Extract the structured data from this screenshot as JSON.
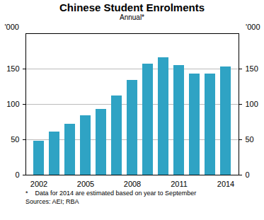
{
  "chart_data": {
    "type": "bar",
    "title": "Chinese Student Enrolments",
    "subtitle": "Annual*",
    "categories": [
      "2002",
      null,
      null,
      "2005",
      null,
      null,
      "2008",
      null,
      null,
      "2011",
      null,
      null,
      "2014"
    ],
    "values": [
      48,
      61,
      72,
      84,
      93,
      112,
      134,
      157,
      166,
      155,
      143,
      143,
      153
    ],
    "color": "#2fa3c4",
    "ylabel": "'000",
    "ylim": [
      0,
      200
    ],
    "yticks": [
      0,
      50,
      100,
      150
    ],
    "y2label": "'000",
    "y2lim": [
      0,
      200
    ],
    "y2ticks": [
      0,
      50,
      100,
      150
    ],
    "grid": true,
    "notes": [
      "*    Data for 2014 are estimated based on year to September",
      "Sources: AEI; RBA"
    ]
  }
}
